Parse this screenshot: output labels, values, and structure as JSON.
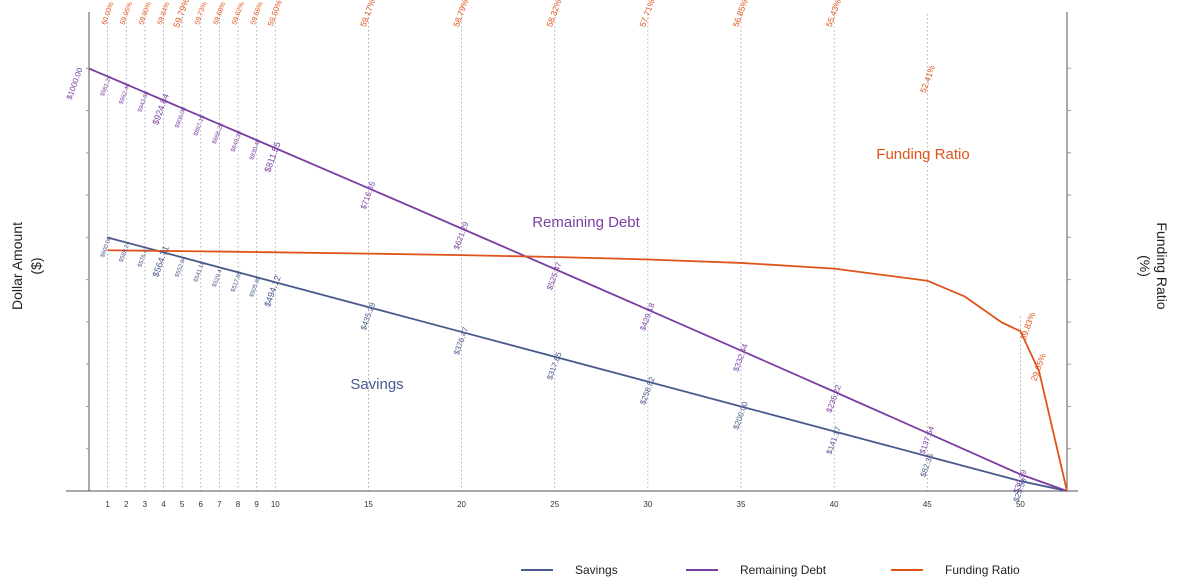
{
  "chart_data": {
    "type": "line",
    "xlabel": "",
    "ylabel_left": "Dollar Amount\n($)",
    "ylabel_right": "Funding Ratio\n(%)",
    "x_ticks": [
      1,
      2,
      3,
      4,
      5,
      6,
      7,
      8,
      9,
      10,
      15,
      20,
      25,
      30,
      35,
      40,
      45,
      50
    ],
    "xlim": [
      0,
      52.5
    ],
    "ylim_dollars": [
      0,
      1000
    ],
    "ylim_percent": [
      0,
      100
    ],
    "grid": "vertical dotted lines at labeled x ticks",
    "legend_position": "bottom",
    "colors": {
      "savings": "#4a5a8e",
      "debt": "#7b3fa3",
      "funding": "#e0541c",
      "axis": "#555555",
      "grid": "#9a9a9a"
    },
    "series": [
      {
        "key": "savings",
        "name": "Savings",
        "axis": "left",
        "x": [
          1,
          2,
          3,
          4,
          5,
          6,
          7,
          8,
          9,
          10,
          15,
          20,
          25,
          30,
          35,
          40,
          45,
          50,
          52.5
        ],
        "values": [
          600.0,
          588.24,
          576.47,
          564.71,
          552.94,
          541.18,
          529.41,
          517.65,
          505.88,
          494.12,
          435.29,
          376.47,
          317.65,
          258.82,
          200.0,
          141.17,
          82.35,
          23.53,
          0
        ],
        "labels": [
          "$600.00",
          "$588.24",
          "$576.47",
          "$564.71",
          "$552.94",
          "$541.18",
          "$529.41",
          "$517.65",
          "$505.88",
          "$494.12",
          "$435.29",
          "$376.47",
          "$317.65",
          "$258.82",
          "$200.00",
          "$141.17",
          "$82.35",
          "$23.53",
          ""
        ]
      },
      {
        "key": "debt",
        "name": "Remaining Debt",
        "axis": "left",
        "x": [
          0,
          1,
          2,
          3,
          4,
          5,
          6,
          7,
          8,
          9,
          10,
          15,
          20,
          25,
          30,
          35,
          40,
          45,
          50,
          52.5
        ],
        "values": [
          1000.0,
          981.24,
          962.46,
          943.66,
          924.84,
          906.0,
          887.15,
          868.28,
          849.39,
          830.48,
          811.55,
          716.65,
          621.29,
          525.47,
          429.18,
          332.44,
          235.22,
          137.54,
          39.39,
          0
        ],
        "labels": [
          "$1000.00",
          "$981.24",
          "$962.46",
          "$943.66",
          "$924.84",
          "$906.00",
          "$887.15",
          "$868.28",
          "$849.39",
          "$830.48",
          "$811.55",
          "$716.65",
          "$621.29",
          "$525.47",
          "$429.18",
          "$332.44",
          "$235.22",
          "$137.54",
          "$39.39",
          ""
        ]
      },
      {
        "key": "funding",
        "name": "Funding Ratio",
        "axis": "right",
        "x": [
          1,
          2,
          3,
          4,
          5,
          6,
          7,
          8,
          9,
          10,
          15,
          20,
          25,
          30,
          35,
          40,
          45,
          47,
          49,
          50,
          51,
          52.5
        ],
        "values": [
          60.0,
          59.95,
          59.9,
          59.84,
          59.79,
          59.73,
          59.68,
          59.62,
          59.56,
          59.5,
          59.17,
          58.79,
          58.32,
          57.71,
          56.85,
          55.43,
          52.41,
          48.5,
          42.0,
          39.83,
          29.85,
          0
        ],
        "labels": [
          "60.00%",
          "59.95%",
          "59.90%",
          "59.84%",
          "59.79%",
          "59.73%",
          "59.68%",
          "59.62%",
          "59.56%",
          "59.50%",
          "59.17%",
          "58.79%",
          "58.32%",
          "57.71%",
          "56.85%",
          "55.43%",
          "52.41%",
          "",
          "",
          "39.83%",
          "29.85%",
          ""
        ]
      }
    ],
    "annotations": [
      {
        "text": "Funding Ratio",
        "series": "funding"
      },
      {
        "text": "Remaining Debt",
        "series": "debt"
      },
      {
        "text": "Savings",
        "series": "savings"
      }
    ]
  },
  "legend": {
    "items": [
      {
        "key": "savings",
        "label": "Savings"
      },
      {
        "key": "debt",
        "label": "Remaining Debt"
      },
      {
        "key": "funding",
        "label": "Funding Ratio"
      }
    ]
  }
}
